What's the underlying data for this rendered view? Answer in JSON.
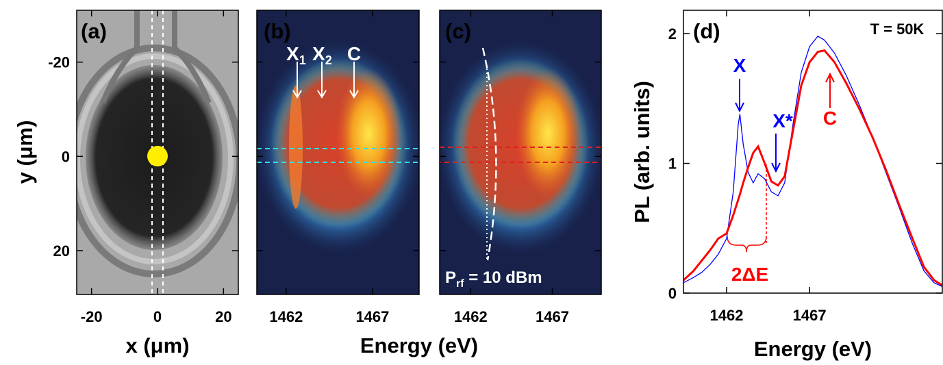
{
  "chart_data": [
    {
      "type": "image",
      "label": "(a)",
      "xlabel": "x (μm)",
      "ylabel": "y (μm)",
      "xlim": [
        -24.5,
        24.5
      ],
      "ylim": [
        29.3,
        -31
      ],
      "xticks": [
        -20,
        0,
        20
      ],
      "yticks": [
        -20,
        0,
        20
      ]
    },
    {
      "type": "image",
      "label": "(b)",
      "xlabel": "Energy (eV)",
      "xlim": [
        1460.3,
        1469.7
      ],
      "xticks": [
        1462,
        1467
      ],
      "annotations": [
        {
          "text": "X",
          "sub": "1"
        },
        {
          "text": "X",
          "sub": "2"
        },
        {
          "text": "C"
        }
      ]
    },
    {
      "type": "image",
      "label": "(c)",
      "xlim": [
        1460.1,
        1470
      ],
      "xticks": [
        1462,
        1467
      ],
      "annotations": [
        {
          "text": "P",
          "sub": "rf",
          "tail": " = 10 dBm"
        }
      ]
    },
    {
      "type": "line",
      "label": "(d)",
      "xlabel": "Energy (eV)",
      "ylabel": "PL (arb. units)",
      "xlim": [
        1459.4,
        1475
      ],
      "ylim": [
        0,
        2.18
      ],
      "xticks": [
        1462,
        1467
      ],
      "yticks": [
        0,
        1,
        2
      ],
      "x": [
        1459.4,
        1460.0,
        1460.5,
        1461.0,
        1461.5,
        1462.0,
        1462.4,
        1462.7,
        1462.8,
        1463.0,
        1463.3,
        1463.6,
        1463.9,
        1464.3,
        1464.7,
        1465.1,
        1465.5,
        1466.0,
        1466.5,
        1467.0,
        1467.5,
        1467.9,
        1468.5,
        1469.2,
        1470.0,
        1470.8,
        1471.6,
        1472.4,
        1473.2,
        1473.9,
        1474.5,
        1475.0
      ],
      "series": [
        {
          "color": "#0000ff",
          "values": [
            0.08,
            0.12,
            0.16,
            0.22,
            0.3,
            0.42,
            0.78,
            1.3,
            1.38,
            1.15,
            0.93,
            0.85,
            0.92,
            0.88,
            0.78,
            0.75,
            0.85,
            1.3,
            1.7,
            1.9,
            1.98,
            1.95,
            1.85,
            1.68,
            1.45,
            1.2,
            0.93,
            0.66,
            0.38,
            0.17,
            0.08,
            0.05
          ]
        },
        {
          "color": "#ff0000",
          "values": [
            0.1,
            0.17,
            0.25,
            0.33,
            0.42,
            0.46,
            0.6,
            0.72,
            0.76,
            0.85,
            0.97,
            1.08,
            1.13,
            1.0,
            0.86,
            0.83,
            0.9,
            1.25,
            1.6,
            1.78,
            1.86,
            1.87,
            1.78,
            1.62,
            1.42,
            1.2,
            0.95,
            0.68,
            0.42,
            0.2,
            0.1,
            0.06
          ]
        }
      ],
      "annotations": [
        {
          "text": "T = 50K"
        },
        {
          "text": "X"
        },
        {
          "text": "X*"
        },
        {
          "text": "C"
        },
        {
          "text": "2ΔE"
        }
      ]
    }
  ]
}
